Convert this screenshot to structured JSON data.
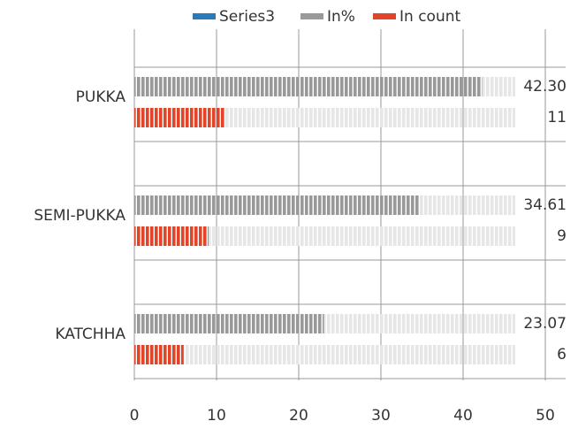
{
  "chart_data": {
    "type": "bar",
    "orientation": "horizontal",
    "categories": [
      "PUKKA",
      "SEMI-PUKKA",
      "KATCHHA"
    ],
    "series": [
      {
        "name": "Series3",
        "color": "#2a7ab9",
        "values": [
          null,
          null,
          null
        ]
      },
      {
        "name": "In%",
        "color": "#999999",
        "values": [
          42.3,
          34.61,
          23.07
        ],
        "value_labels": [
          "42.30",
          "34.61",
          "23.07"
        ]
      },
      {
        "name": "In count",
        "color": "#e0452a",
        "values": [
          11,
          9,
          6
        ]
      }
    ],
    "xlim": [
      0,
      50
    ],
    "xticks": [
      0,
      10,
      20,
      30,
      40,
      50
    ],
    "grid": true,
    "legend": "top"
  }
}
